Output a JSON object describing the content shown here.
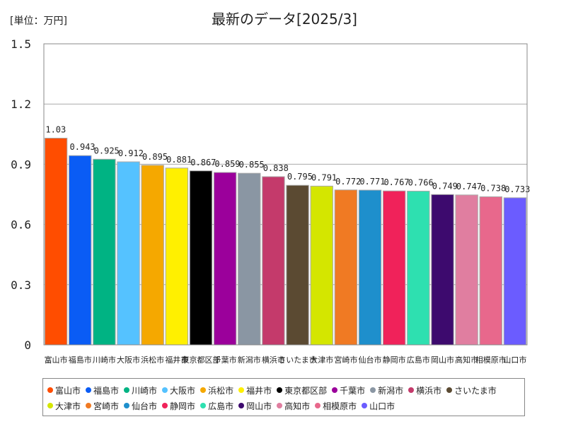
{
  "chart_data": {
    "type": "bar",
    "title": "最新のデータ[2025/3]",
    "unit_label": "[単位：万円]",
    "ylim": [
      0,
      1.5
    ],
    "yticks": [
      "0",
      "0.3",
      "0.6",
      "0.9",
      "1.2",
      "1.5"
    ],
    "grid": true,
    "legend_position": "bottom",
    "categories": [
      "富山市",
      "福島市",
      "川崎市",
      "大阪市",
      "浜松市",
      "福井市",
      "東京都区部",
      "千葉市",
      "新潟市",
      "横浜市",
      "さいたま市",
      "大津市",
      "宮崎市",
      "仙台市",
      "静岡市",
      "広島市",
      "岡山市",
      "高知市",
      "相模原市",
      "山口市"
    ],
    "values": [
      1.03,
      0.943,
      0.925,
      0.912,
      0.895,
      0.881,
      0.867,
      0.859,
      0.855,
      0.838,
      0.795,
      0.791,
      0.772,
      0.771,
      0.767,
      0.766,
      0.749,
      0.747,
      0.738,
      0.733
    ],
    "value_labels": [
      "1.03",
      "0.943",
      "0.925",
      "0.912",
      "0.895",
      "0.881",
      "0.867",
      "0.859",
      "0.855",
      "0.838",
      "0.795",
      "0.791",
      "0.772",
      "0.771",
      "0.767",
      "0.766",
      "0.749",
      "0.747",
      "0.738",
      "0.733"
    ],
    "colors": [
      "#ff4d00",
      "#0a5cf5",
      "#00b383",
      "#55c2ff",
      "#f5a800",
      "#fff000",
      "#000000",
      "#9b009b",
      "#8a96a3",
      "#c43a6b",
      "#5b4a32",
      "#d4e600",
      "#f07a23",
      "#1e8fcc",
      "#f0225a",
      "#2ee0b0",
      "#3d0a6e",
      "#e07ea0",
      "#e8688c",
      "#6b5cff"
    ]
  }
}
